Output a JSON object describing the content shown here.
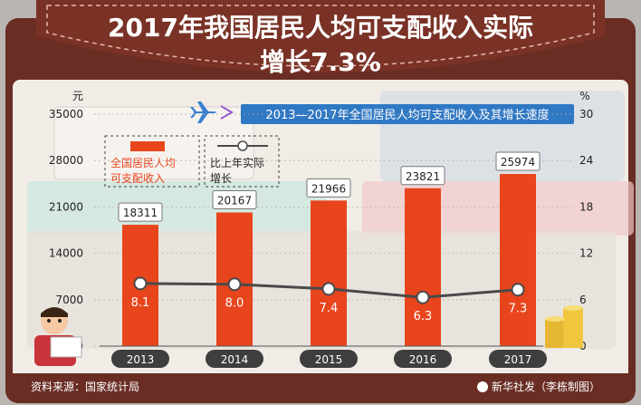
{
  "title_line1": "2017年我国居民人均可支配收入实际",
  "title_line2": "增长7.3%",
  "subtitle": "2013—2017年全国居民人均可支配收入及其增长速度",
  "source": "资料来源：国家统计局",
  "credit": "新华社发（李栋制图）",
  "colors": {
    "bar": "#e8451d",
    "line": "#4a4a4a",
    "subtitle_bg": "#2f78c4",
    "wallet": "#6a2d24"
  },
  "chart_data": {
    "type": "bar",
    "categories": [
      "2013",
      "2014",
      "2015",
      "2016",
      "2017"
    ],
    "x_unit": "年",
    "y_left": {
      "label": "元",
      "min": 0,
      "max": 35000,
      "ticks": [
        0,
        7000,
        14000,
        21000,
        28000,
        35000
      ]
    },
    "y_right": {
      "label": "%",
      "min": 0,
      "max": 30,
      "ticks": [
        0,
        6,
        12,
        18,
        24,
        30
      ]
    },
    "series": [
      {
        "name": "全国居民人均可支配收入",
        "type": "bar",
        "axis": "left",
        "values": [
          18311,
          20167,
          21966,
          23821,
          25974
        ]
      },
      {
        "name": "比上年实际增长",
        "type": "line",
        "axis": "right",
        "values": [
          8.1,
          8.0,
          7.4,
          6.3,
          7.3
        ]
      }
    ]
  }
}
